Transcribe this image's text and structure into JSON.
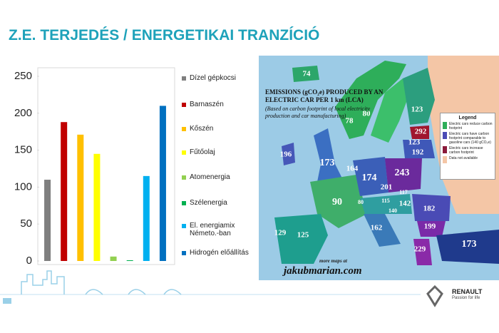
{
  "title": "Z.E. TERJEDÉS / ENERGETIKAI TRANZÍCIÓ",
  "chart_data": {
    "type": "bar",
    "series": [
      {
        "name": "Dízel gépkocsi",
        "color": "#7f7f7f",
        "values": [
          110
        ]
      },
      {
        "name": "Barnaszén",
        "color": "#c00000",
        "values": [
          188
        ]
      },
      {
        "name": "Kőszén",
        "color": "#ffc000",
        "values": [
          171
        ]
      },
      {
        "name": "Fűtőolaj",
        "color": "#ffff00",
        "values": [
          145
        ]
      },
      {
        "name": "Atomenergia",
        "color": "#92d050",
        "values": [
          6
        ]
      },
      {
        "name": "Szélenergia",
        "color": "#00b050",
        "values": [
          1
        ]
      },
      {
        "name": "El. energiamix Németo.-ban",
        "color": "#00b0f0",
        "values": [
          115
        ]
      },
      {
        "name": "Hidrogén előállítás",
        "color": "#0070c0",
        "values": [
          210
        ]
      }
    ],
    "ylim": [
      0,
      250
    ],
    "yticks": [
      0,
      50,
      100,
      150,
      200,
      250
    ],
    "grid": false,
    "legend": "right"
  },
  "map": {
    "title": "EMISSIONS (gCO₂e) PRODUCED BY AN ELECTRIC CAR PER 1 km (LCA)",
    "subtitle": "(Based on carbon footprint of local electricity production and car manufacturing)",
    "legend": {
      "title": "Legend",
      "items": [
        {
          "label": "Electric cars reduce carbon footprint",
          "color": "#2eae5a"
        },
        {
          "label": "Electric cars have carbon footprint comparable to gasoline cars (140 gCO₂e)",
          "color": "#4a4bb5"
        },
        {
          "label": "Electric cars increase carbon footprint",
          "color": "#8a1a3a"
        },
        {
          "label": "Data not available",
          "color": "#f4c6a6"
        }
      ]
    },
    "labels": [
      74,
      80,
      78,
      123,
      292,
      123,
      192,
      196,
      173,
      164,
      174,
      243,
      201,
      117,
      90,
      80,
      115,
      142,
      140,
      182,
      162,
      199,
      129,
      125,
      229,
      173
    ],
    "credit": "more maps at",
    "source": "jakubmarian.com"
  },
  "footer": {
    "brand": "RENAULT",
    "tagline": "Passion for life"
  }
}
